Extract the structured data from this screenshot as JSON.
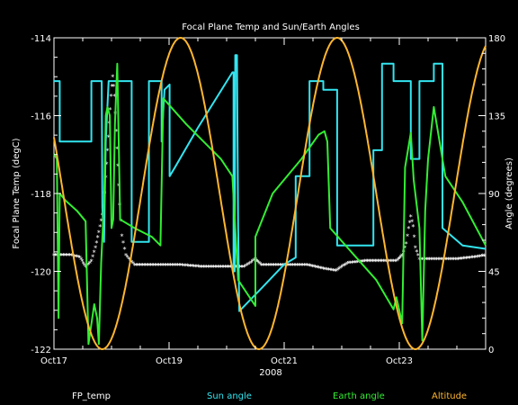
{
  "chart_data": {
    "type": "line",
    "title": "Focal Plane Temp and Sun/Earth Angles",
    "xlabel": "2008",
    "ylabel_left": "Focal Plane Temp (degC)",
    "ylabel_right": "Angle (degrees)",
    "x_range_days": [
      17,
      24.5
    ],
    "xticks": [
      {
        "x": 17,
        "label": "Oct17"
      },
      {
        "x": 19,
        "label": "Oct19"
      },
      {
        "x": 21,
        "label": "Oct21"
      },
      {
        "x": 23,
        "label": "Oct23"
      }
    ],
    "y_left_range": [
      -122,
      -114
    ],
    "y_left_ticks": [
      -122,
      -120,
      -118,
      -116,
      -114
    ],
    "y_right_range": [
      0,
      180
    ],
    "y_right_ticks": [
      0,
      45,
      90,
      135,
      180
    ],
    "legend_placement": "bottom",
    "series": [
      {
        "name": "FP_temp",
        "color": "#ffffff",
        "axis": "left",
        "style": "points",
        "points": [
          [
            17.0,
            -119.6
          ],
          [
            17.3,
            -119.6
          ],
          [
            17.45,
            -119.65
          ],
          [
            17.55,
            -119.9
          ],
          [
            17.65,
            -119.75
          ],
          [
            17.72,
            -119.4
          ],
          [
            17.78,
            -119.0
          ],
          [
            17.82,
            -118.7
          ],
          [
            17.86,
            -118.4
          ],
          [
            17.9,
            -117.6
          ],
          [
            17.93,
            -116.9
          ],
          [
            17.96,
            -116.2
          ],
          [
            17.99,
            -115.5
          ],
          [
            18.02,
            -115.0
          ],
          [
            18.05,
            -115.5
          ],
          [
            18.08,
            -116.4
          ],
          [
            18.11,
            -117.3
          ],
          [
            18.14,
            -118.3
          ],
          [
            18.18,
            -119.1
          ],
          [
            18.25,
            -119.6
          ],
          [
            18.4,
            -119.85
          ],
          [
            18.8,
            -119.85
          ],
          [
            19.2,
            -119.85
          ],
          [
            19.6,
            -119.9
          ],
          [
            20.0,
            -119.9
          ],
          [
            20.3,
            -119.9
          ],
          [
            20.5,
            -119.7
          ],
          [
            20.6,
            -119.85
          ],
          [
            21.0,
            -119.85
          ],
          [
            21.4,
            -119.85
          ],
          [
            21.7,
            -119.95
          ],
          [
            21.9,
            -120.0
          ],
          [
            22.1,
            -119.8
          ],
          [
            22.4,
            -119.75
          ],
          [
            22.7,
            -119.75
          ],
          [
            22.95,
            -119.75
          ],
          [
            23.05,
            -119.6
          ],
          [
            23.12,
            -119.3
          ],
          [
            23.16,
            -118.9
          ],
          [
            23.2,
            -118.6
          ],
          [
            23.24,
            -118.85
          ],
          [
            23.28,
            -119.4
          ],
          [
            23.35,
            -119.7
          ],
          [
            23.6,
            -119.7
          ],
          [
            24.0,
            -119.7
          ],
          [
            24.3,
            -119.65
          ],
          [
            24.5,
            -119.6
          ]
        ]
      },
      {
        "name": "Sun angle",
        "color": "#33e5f0",
        "axis": "right",
        "points": [
          [
            17.0,
            155
          ],
          [
            17.08,
            155
          ],
          [
            17.1,
            155
          ],
          [
            17.1,
            120
          ],
          [
            17.65,
            120
          ],
          [
            17.65,
            155
          ],
          [
            17.83,
            155
          ],
          [
            17.84,
            82
          ],
          [
            17.87,
            62
          ],
          [
            17.9,
            120
          ],
          [
            17.95,
            155
          ],
          [
            18.35,
            155
          ],
          [
            18.35,
            62
          ],
          [
            18.65,
            62
          ],
          [
            18.65,
            155
          ],
          [
            18.87,
            155
          ],
          [
            18.87,
            120
          ],
          [
            18.92,
            150
          ],
          [
            19.01,
            153
          ],
          [
            19.01,
            100
          ],
          [
            19.1,
            105
          ],
          [
            19.5,
            128
          ],
          [
            20.1,
            160
          ],
          [
            20.12,
            160
          ],
          [
            20.12,
            45
          ],
          [
            20.14,
            45
          ],
          [
            20.15,
            170
          ],
          [
            20.18,
            170
          ],
          [
            20.2,
            70
          ],
          [
            20.22,
            22
          ],
          [
            20.6,
            35
          ],
          [
            21.0,
            49
          ],
          [
            21.2,
            53
          ],
          [
            21.2,
            100
          ],
          [
            21.44,
            100
          ],
          [
            21.44,
            155
          ],
          [
            21.68,
            155
          ],
          [
            21.68,
            150
          ],
          [
            21.92,
            150
          ],
          [
            21.92,
            60
          ],
          [
            22.55,
            60
          ],
          [
            22.55,
            115
          ],
          [
            22.7,
            115
          ],
          [
            22.7,
            165
          ],
          [
            22.9,
            165
          ],
          [
            22.9,
            155
          ],
          [
            23.2,
            155
          ],
          [
            23.2,
            110
          ],
          [
            23.35,
            110
          ],
          [
            23.35,
            155
          ],
          [
            23.6,
            155
          ],
          [
            23.6,
            165
          ],
          [
            23.75,
            165
          ],
          [
            23.75,
            70
          ],
          [
            24.1,
            60
          ],
          [
            24.5,
            58
          ]
        ]
      },
      {
        "name": "Earth angle",
        "color": "#33ee33",
        "axis": "right",
        "points": [
          [
            17.0,
            113
          ],
          [
            17.05,
            110
          ],
          [
            17.08,
            18
          ],
          [
            17.1,
            90
          ],
          [
            17.2,
            86
          ],
          [
            17.4,
            80
          ],
          [
            17.55,
            74
          ],
          [
            17.6,
            3
          ],
          [
            17.7,
            26
          ],
          [
            17.75,
            18
          ],
          [
            17.78,
            3
          ],
          [
            17.82,
            50
          ],
          [
            17.87,
            85
          ],
          [
            17.9,
            135
          ],
          [
            17.93,
            140
          ],
          [
            17.97,
            135
          ],
          [
            18.0,
            70
          ],
          [
            18.03,
            75
          ],
          [
            18.06,
            130
          ],
          [
            18.1,
            165
          ],
          [
            18.15,
            75
          ],
          [
            18.4,
            70
          ],
          [
            18.7,
            65
          ],
          [
            18.85,
            60
          ],
          [
            18.9,
            145
          ],
          [
            19.3,
            130
          ],
          [
            19.6,
            120
          ],
          [
            19.9,
            110
          ],
          [
            20.1,
            100
          ],
          [
            20.2,
            40
          ],
          [
            20.4,
            30
          ],
          [
            20.5,
            25
          ],
          [
            20.5,
            65
          ],
          [
            20.8,
            90
          ],
          [
            21.3,
            110
          ],
          [
            21.6,
            124
          ],
          [
            21.7,
            126
          ],
          [
            21.75,
            120
          ],
          [
            21.8,
            70
          ],
          [
            22.2,
            55
          ],
          [
            22.6,
            40
          ],
          [
            22.9,
            23
          ],
          [
            22.95,
            30
          ],
          [
            23.05,
            15
          ],
          [
            23.1,
            105
          ],
          [
            23.15,
            115
          ],
          [
            23.2,
            125
          ],
          [
            23.25,
            98
          ],
          [
            23.3,
            84
          ],
          [
            23.35,
            70
          ],
          [
            23.4,
            5
          ],
          [
            23.45,
            80
          ],
          [
            23.5,
            110
          ],
          [
            23.6,
            140
          ],
          [
            23.8,
            100
          ],
          [
            24.1,
            85
          ],
          [
            24.5,
            60
          ]
        ]
      },
      {
        "name": "Altitude",
        "color": "#ffb62e",
        "axis": "right",
        "style": "orbit",
        "perigee_days": [
          17.84,
          20.57,
          23.29
        ],
        "apogee_days": [
          19.2,
          21.93
        ],
        "max": 180,
        "min": 0
      }
    ]
  }
}
